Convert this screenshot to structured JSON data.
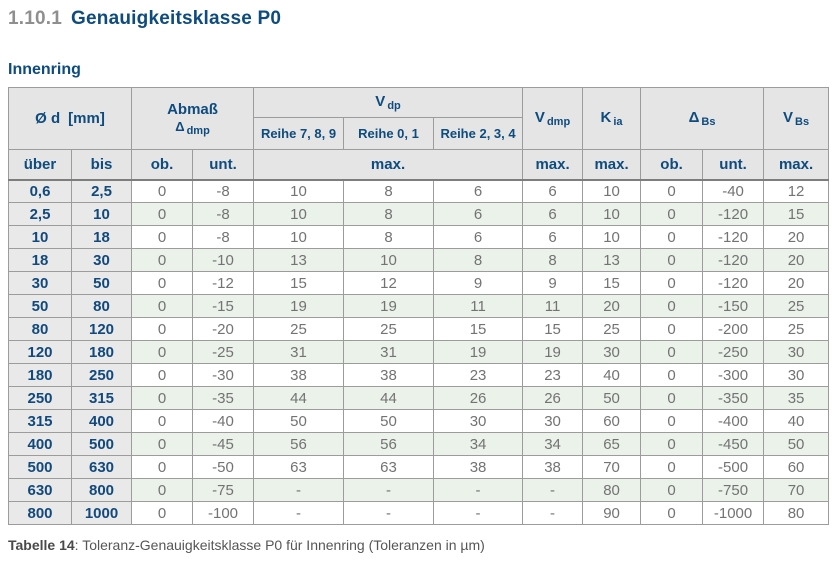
{
  "page": {
    "heading_number": "1.10.1",
    "heading_title": "Genauigkeitsklasse P0",
    "section_title": "Innenring"
  },
  "colors": {
    "accent_blue": "#0e4b7e",
    "header_bg": "#e5e5e5",
    "range_col_bg": "#e9e9e9",
    "row_alt_green": "#eaf2e9",
    "border_gray": "#9c9c9c",
    "data_text_gray": "#737373"
  },
  "table": {
    "headers": {
      "od_main": "Ø d",
      "od_unit": "[mm]",
      "abmass_line1": "Abmaß",
      "abmass_symbol": "Δ",
      "abmass_sub": "dmp",
      "vdp_main": "V",
      "vdp_sub": "dp",
      "reihe789": "Reihe 7, 8, 9",
      "reihe01": "Reihe 0, 1",
      "reihe234": "Reihe 2, 3, 4",
      "vdmp_main": "V",
      "vdmp_sub": "dmp",
      "kia_main": "K",
      "kia_sub": "ia",
      "dbs_main": "Δ",
      "dbs_sub": "Bs",
      "vbs_main": "V",
      "vbs_sub": "Bs",
      "ueber": "über",
      "bis": "bis",
      "ob": "ob.",
      "unt": "unt.",
      "max": "max."
    },
    "rows": [
      [
        "0,6",
        "2,5",
        "0",
        "-8",
        "10",
        "8",
        "6",
        "6",
        "10",
        "0",
        "-40",
        "12"
      ],
      [
        "2,5",
        "10",
        "0",
        "-8",
        "10",
        "8",
        "6",
        "6",
        "10",
        "0",
        "-120",
        "15"
      ],
      [
        "10",
        "18",
        "0",
        "-8",
        "10",
        "8",
        "6",
        "6",
        "10",
        "0",
        "-120",
        "20"
      ],
      [
        "18",
        "30",
        "0",
        "-10",
        "13",
        "10",
        "8",
        "8",
        "13",
        "0",
        "-120",
        "20"
      ],
      [
        "30",
        "50",
        "0",
        "-12",
        "15",
        "12",
        "9",
        "9",
        "15",
        "0",
        "-120",
        "20"
      ],
      [
        "50",
        "80",
        "0",
        "-15",
        "19",
        "19",
        "11",
        "11",
        "20",
        "0",
        "-150",
        "25"
      ],
      [
        "80",
        "120",
        "0",
        "-20",
        "25",
        "25",
        "15",
        "15",
        "25",
        "0",
        "-200",
        "25"
      ],
      [
        "120",
        "180",
        "0",
        "-25",
        "31",
        "31",
        "19",
        "19",
        "30",
        "0",
        "-250",
        "30"
      ],
      [
        "180",
        "250",
        "0",
        "-30",
        "38",
        "38",
        "23",
        "23",
        "40",
        "0",
        "-300",
        "30"
      ],
      [
        "250",
        "315",
        "0",
        "-35",
        "44",
        "44",
        "26",
        "26",
        "50",
        "0",
        "-350",
        "35"
      ],
      [
        "315",
        "400",
        "0",
        "-40",
        "50",
        "50",
        "30",
        "30",
        "60",
        "0",
        "-400",
        "40"
      ],
      [
        "400",
        "500",
        "0",
        "-45",
        "56",
        "56",
        "34",
        "34",
        "65",
        "0",
        "-450",
        "50"
      ],
      [
        "500",
        "630",
        "0",
        "-50",
        "63",
        "63",
        "38",
        "38",
        "70",
        "0",
        "-500",
        "60"
      ],
      [
        "630",
        "800",
        "0",
        "-75",
        "-",
        "-",
        "-",
        "-",
        "80",
        "0",
        "-750",
        "70"
      ],
      [
        "800",
        "1000",
        "0",
        "-100",
        "-",
        "-",
        "-",
        "-",
        "90",
        "0",
        "-1000",
        "80"
      ]
    ]
  },
  "caption": {
    "label": "Tabelle 14",
    "text": ": Toleranz-Genauigkeitsklasse P0 für Innenring (Toleranzen in µm)"
  }
}
